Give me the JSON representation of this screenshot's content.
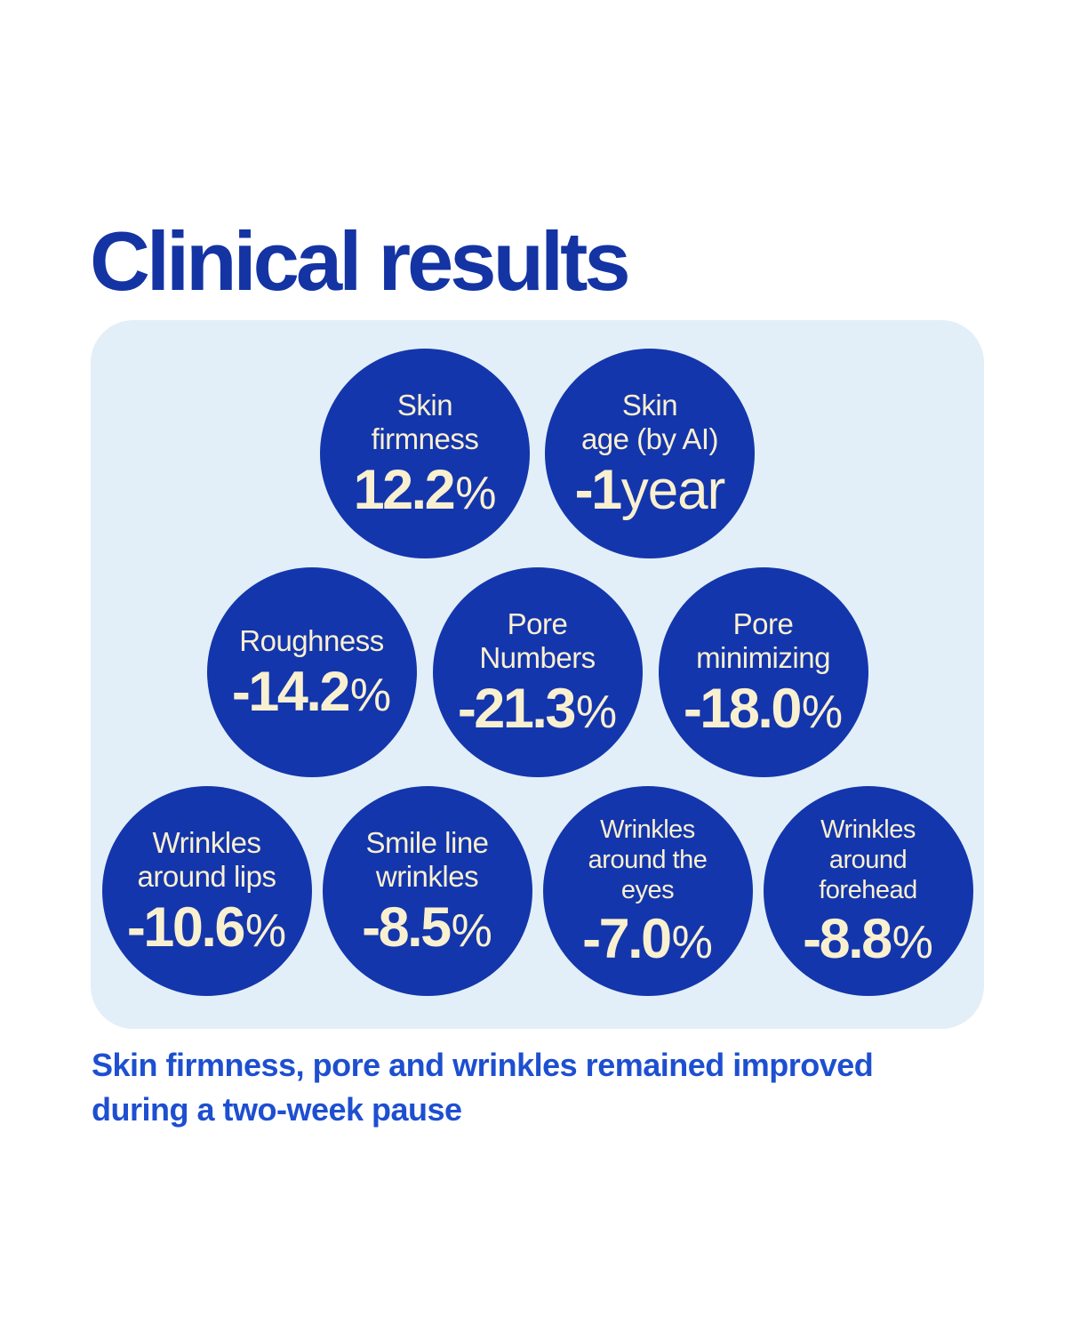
{
  "title": "Clinical results",
  "footnote": "Skin firmness, pore and wrinkles remained improved during a two-week pause",
  "colors": {
    "title_blue": "#1434A4",
    "circle_blue": "#1436AC",
    "panel_bg": "#E2EFF8",
    "cream_text": "#F9F0D0",
    "footnote_blue": "#1D4FD0",
    "page_bg": "#FFFFFF"
  },
  "chart_data": {
    "type": "bar",
    "subtype": "bubble-infographic",
    "title": "Clinical results",
    "categories": [
      "Skin firmness",
      "Skin age (by AI)",
      "Roughness",
      "Pore Numbers",
      "Pore minimizing",
      "Wrinkles around lips",
      "Smile line wrinkles",
      "Wrinkles around the eyes",
      "Wrinkles around forehead"
    ],
    "values": [
      12.2,
      -1,
      -14.2,
      -21.3,
      -18.0,
      -10.6,
      -8.5,
      -7.0,
      -8.8
    ],
    "units": [
      "%",
      "year",
      "%",
      "%",
      "%",
      "%",
      "%",
      "%",
      "%"
    ],
    "annotation": "Skin firmness, pore and wrinkles remained improved during a two-week pause",
    "layout": "circles arranged in 3 centered rows of 2, 3 and 4",
    "legend": "none",
    "grid": false
  },
  "stats": {
    "rows": [
      {
        "items": [
          {
            "label": "Skin\nfirmness",
            "number": "12.2",
            "suffix": "%"
          },
          {
            "label": "Skin\nage (by AI)",
            "number": "-1",
            "suffix": "year"
          }
        ]
      },
      {
        "items": [
          {
            "label": "Roughness",
            "number": "-14.2",
            "suffix": "%"
          },
          {
            "label": "Pore\nNumbers",
            "number": "-21.3",
            "suffix": "%"
          },
          {
            "label": "Pore\nminimizing",
            "number": "-18.0",
            "suffix": "%"
          }
        ]
      },
      {
        "items": [
          {
            "label": "Wrinkles\naround lips",
            "number": "-10.6",
            "suffix": "%"
          },
          {
            "label": "Smile line\nwrinkles",
            "number": "-8.5",
            "suffix": "%"
          },
          {
            "label": "Wrinkles\naround the\neyes",
            "number": "-7.0",
            "suffix": "%"
          },
          {
            "label": "Wrinkles\naround\nforehead",
            "number": "-8.8",
            "suffix": "%"
          }
        ]
      }
    ]
  }
}
